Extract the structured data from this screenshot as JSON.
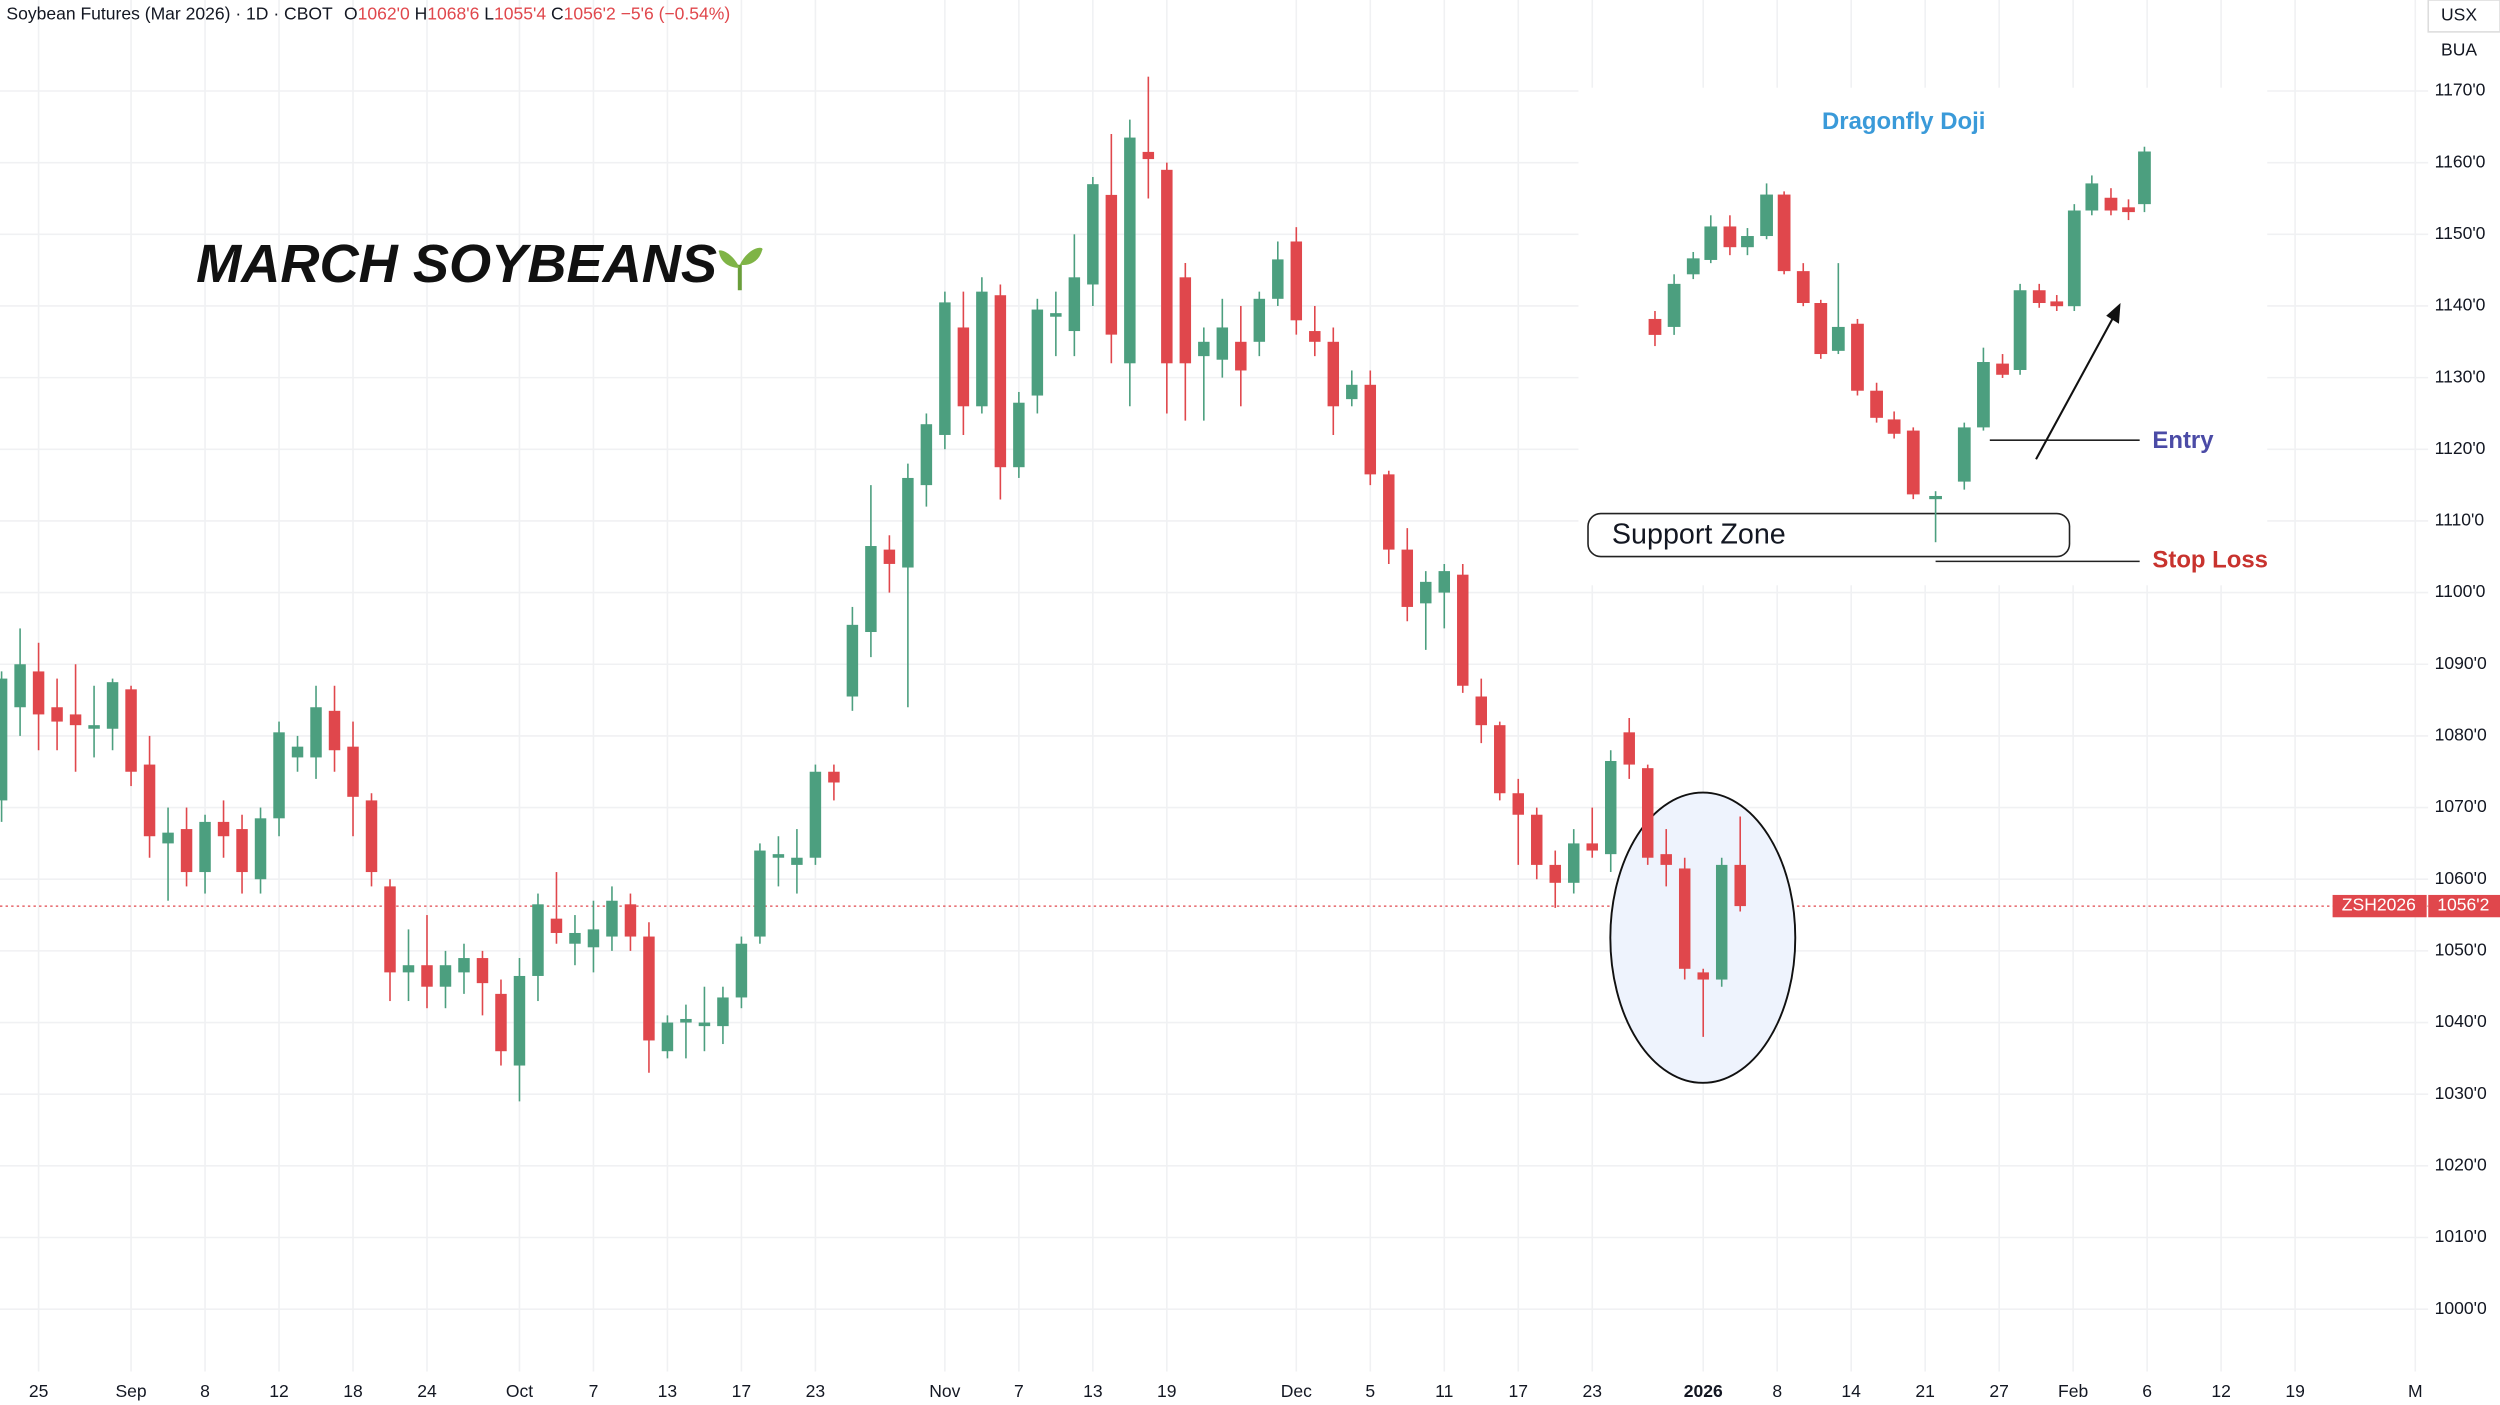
{
  "chart_data": {
    "type": "candlestick",
    "title": "MARCH SOYBEANS",
    "header": {
      "instrument": "Soybean Futures (Mar 2026) · 1D · CBOT",
      "open": "1062'0",
      "high": "1068'6",
      "low": "1055'4",
      "close": "1056'2",
      "change": "−5'6 (−0.54%)"
    },
    "header_letters": [
      "O",
      "H",
      "L",
      "C"
    ],
    "currency_tags": [
      "USX",
      "BUA"
    ],
    "symbol_tag": "ZSH2026",
    "last_price": {
      "value": 1056.25,
      "label": "1056'2"
    },
    "annotations": {
      "pattern": "Dragonfly  Doji",
      "zone": "Support  Zone",
      "entry": "Entry",
      "stop": "Stop Loss"
    },
    "open": [
      1071,
      1084,
      1089,
      1084,
      1083,
      1081,
      1081,
      1086.5,
      1076,
      1065,
      1067,
      1061,
      1068,
      1067,
      1060,
      1068.5,
      1077,
      1077,
      1083.5,
      1078.5,
      1071,
      1059,
      1047,
      1048,
      1045,
      1047,
      1049,
      1044,
      1034,
      1046.5,
      1054.5,
      1051,
      1050.5,
      1052,
      1056.5,
      1052,
      1036,
      1040,
      1039.5,
      1039.5,
      1043.5,
      1052,
      1063,
      1062,
      1063,
      1075,
      1085.5,
      1094.5,
      1106,
      1103.5,
      1115,
      1122,
      1137,
      1126,
      1141.5,
      1117.5,
      1127.5,
      1138.5,
      1136.5,
      1143,
      1155.5,
      1132,
      1161.5,
      1159,
      1144,
      1133,
      1132.5,
      1135,
      1135,
      1141,
      1149,
      1136.5,
      1135,
      1127,
      1129,
      1116.5,
      1106,
      1098.5,
      1100,
      1102.5,
      1085.5,
      1081.5,
      1072,
      1069,
      1062,
      1059.5,
      1065,
      1063.5,
      1080.5,
      1075.5,
      1063.5,
      1061.5,
      1047,
      1046,
      1062
    ],
    "high": [
      1089,
      1095,
      1093,
      1088,
      1090,
      1087,
      1088,
      1087,
      1080,
      1070,
      1070,
      1069,
      1071,
      1069,
      1070,
      1082,
      1080,
      1087,
      1087,
      1082,
      1072,
      1060,
      1053,
      1055,
      1050,
      1051,
      1050,
      1046,
      1049,
      1058,
      1061,
      1055,
      1057,
      1059,
      1058,
      1054,
      1041,
      1042.5,
      1045,
      1045,
      1052,
      1065,
      1066,
      1067,
      1076,
      1076,
      1098,
      1115,
      1108,
      1118,
      1125,
      1142,
      1142,
      1144,
      1143,
      1128,
      1141,
      1142,
      1150,
      1158,
      1164,
      1166,
      1172,
      1160,
      1146,
      1137,
      1141,
      1140,
      1142,
      1149,
      1151,
      1140,
      1137,
      1131,
      1131,
      1117,
      1109,
      1103,
      1104,
      1104,
      1088,
      1082,
      1074,
      1070,
      1064,
      1067,
      1070,
      1078,
      1082.5,
      1076,
      1067,
      1063,
      1047.5,
      1063,
      1068.75
    ],
    "low": [
      1068,
      1080,
      1078,
      1078,
      1075,
      1077,
      1078,
      1073,
      1063,
      1057,
      1059,
      1058,
      1063,
      1058,
      1058,
      1066,
      1075,
      1074,
      1075,
      1066,
      1059,
      1043,
      1043,
      1042,
      1042,
      1044,
      1041,
      1034,
      1029,
      1043,
      1051,
      1048,
      1047,
      1050,
      1050,
      1033,
      1035,
      1035,
      1036,
      1037,
      1042,
      1051,
      1059,
      1058,
      1062,
      1071,
      1083.5,
      1091,
      1100,
      1084,
      1112,
      1120,
      1122,
      1125,
      1113,
      1116,
      1125,
      1133,
      1133,
      1140,
      1132,
      1126,
      1155,
      1125,
      1124,
      1124,
      1130,
      1126,
      1133,
      1140,
      1136,
      1133,
      1122,
      1126,
      1115,
      1104,
      1096,
      1092,
      1095,
      1086,
      1079,
      1071,
      1062,
      1060,
      1056,
      1058,
      1063,
      1061,
      1074,
      1062,
      1059,
      1046,
      1038,
      1045,
      1055.5
    ],
    "close": [
      1088,
      1090,
      1083,
      1082,
      1081.5,
      1081.5,
      1087.5,
      1075,
      1066,
      1066.5,
      1061,
      1068,
      1066,
      1061,
      1068.5,
      1080.5,
      1078.5,
      1084,
      1078,
      1071.5,
      1061,
      1047,
      1048,
      1045,
      1048,
      1049,
      1045.5,
      1036,
      1046.5,
      1056.5,
      1052.5,
      1052.5,
      1053,
      1057,
      1052,
      1037.5,
      1040,
      1040.5,
      1040,
      1043.5,
      1051,
      1064,
      1063.5,
      1063,
      1075,
      1073.5,
      1095.5,
      1106.5,
      1104,
      1116,
      1123.5,
      1140.5,
      1126,
      1142,
      1117.5,
      1126.5,
      1139.5,
      1139,
      1144,
      1157,
      1136,
      1163.5,
      1160.5,
      1132,
      1132,
      1135,
      1137,
      1131,
      1141,
      1146.5,
      1138,
      1135,
      1126,
      1129,
      1116.5,
      1106,
      1098,
      1101.5,
      1103,
      1087,
      1081.5,
      1072,
      1069,
      1062,
      1059.5,
      1065,
      1064,
      1076.5,
      1076,
      1063,
      1062,
      1047.5,
      1046,
      1062,
      1056.25
    ],
    "up_color": "#4c9f7f",
    "down_color": "#e0474c",
    "xlim": [
      -0.086,
      131.2
    ],
    "xticks": [
      {
        "value": 2,
        "label": "25"
      },
      {
        "value": 7,
        "label": "Sep"
      },
      {
        "value": 11,
        "label": "8"
      },
      {
        "value": 15,
        "label": "12"
      },
      {
        "value": 19,
        "label": "18"
      },
      {
        "value": 23,
        "label": "24"
      },
      {
        "value": 28,
        "label": "Oct"
      },
      {
        "value": 32,
        "label": "7"
      },
      {
        "value": 36,
        "label": "13"
      },
      {
        "value": 40,
        "label": "17"
      },
      {
        "value": 44,
        "label": "23"
      },
      {
        "value": 51,
        "label": "Nov"
      },
      {
        "value": 55,
        "label": "7"
      },
      {
        "value": 59,
        "label": "13"
      },
      {
        "value": 63,
        "label": "19"
      },
      {
        "value": 70,
        "label": "Dec"
      },
      {
        "value": 74,
        "label": "5"
      },
      {
        "value": 78,
        "label": "11"
      },
      {
        "value": 82,
        "label": "17"
      },
      {
        "value": 86,
        "label": "23"
      },
      {
        "value": 92,
        "label": "2026"
      },
      {
        "value": 96,
        "label": "8"
      },
      {
        "value": 100,
        "label": "14"
      },
      {
        "value": 104,
        "label": "21"
      },
      {
        "value": 108,
        "label": "27"
      },
      {
        "value": 112,
        "label": "Feb"
      },
      {
        "value": 116,
        "label": "6"
      },
      {
        "value": 120,
        "label": "12"
      },
      {
        "value": 124,
        "label": "19"
      },
      {
        "value": 130.5,
        "label": "M"
      }
    ],
    "ylim": [
      991.3,
      1182.7
    ],
    "yticks": [
      {
        "value": 1000,
        "label": "1000'0"
      },
      {
        "value": 1010,
        "label": "1010'0"
      },
      {
        "value": 1020,
        "label": "1020'0"
      },
      {
        "value": 1030,
        "label": "1030'0"
      },
      {
        "value": 1040,
        "label": "1040'0"
      },
      {
        "value": 1050,
        "label": "1050'0"
      },
      {
        "value": 1060,
        "label": "1060'0"
      },
      {
        "value": 1070,
        "label": "1070'0"
      },
      {
        "value": 1080,
        "label": "1080'0"
      },
      {
        "value": 1090,
        "label": "1090'0"
      },
      {
        "value": 1100,
        "label": "1100'0"
      },
      {
        "value": 1110,
        "label": "1110'0"
      },
      {
        "value": 1120,
        "label": "1120'0"
      },
      {
        "value": 1130,
        "label": "1130'0"
      },
      {
        "value": 1140,
        "label": "1140'0"
      },
      {
        "value": 1150,
        "label": "1150'0"
      },
      {
        "value": 1160,
        "label": "1160'0"
      },
      {
        "value": 1170,
        "label": "1170'0"
      }
    ],
    "grid": true
  }
}
